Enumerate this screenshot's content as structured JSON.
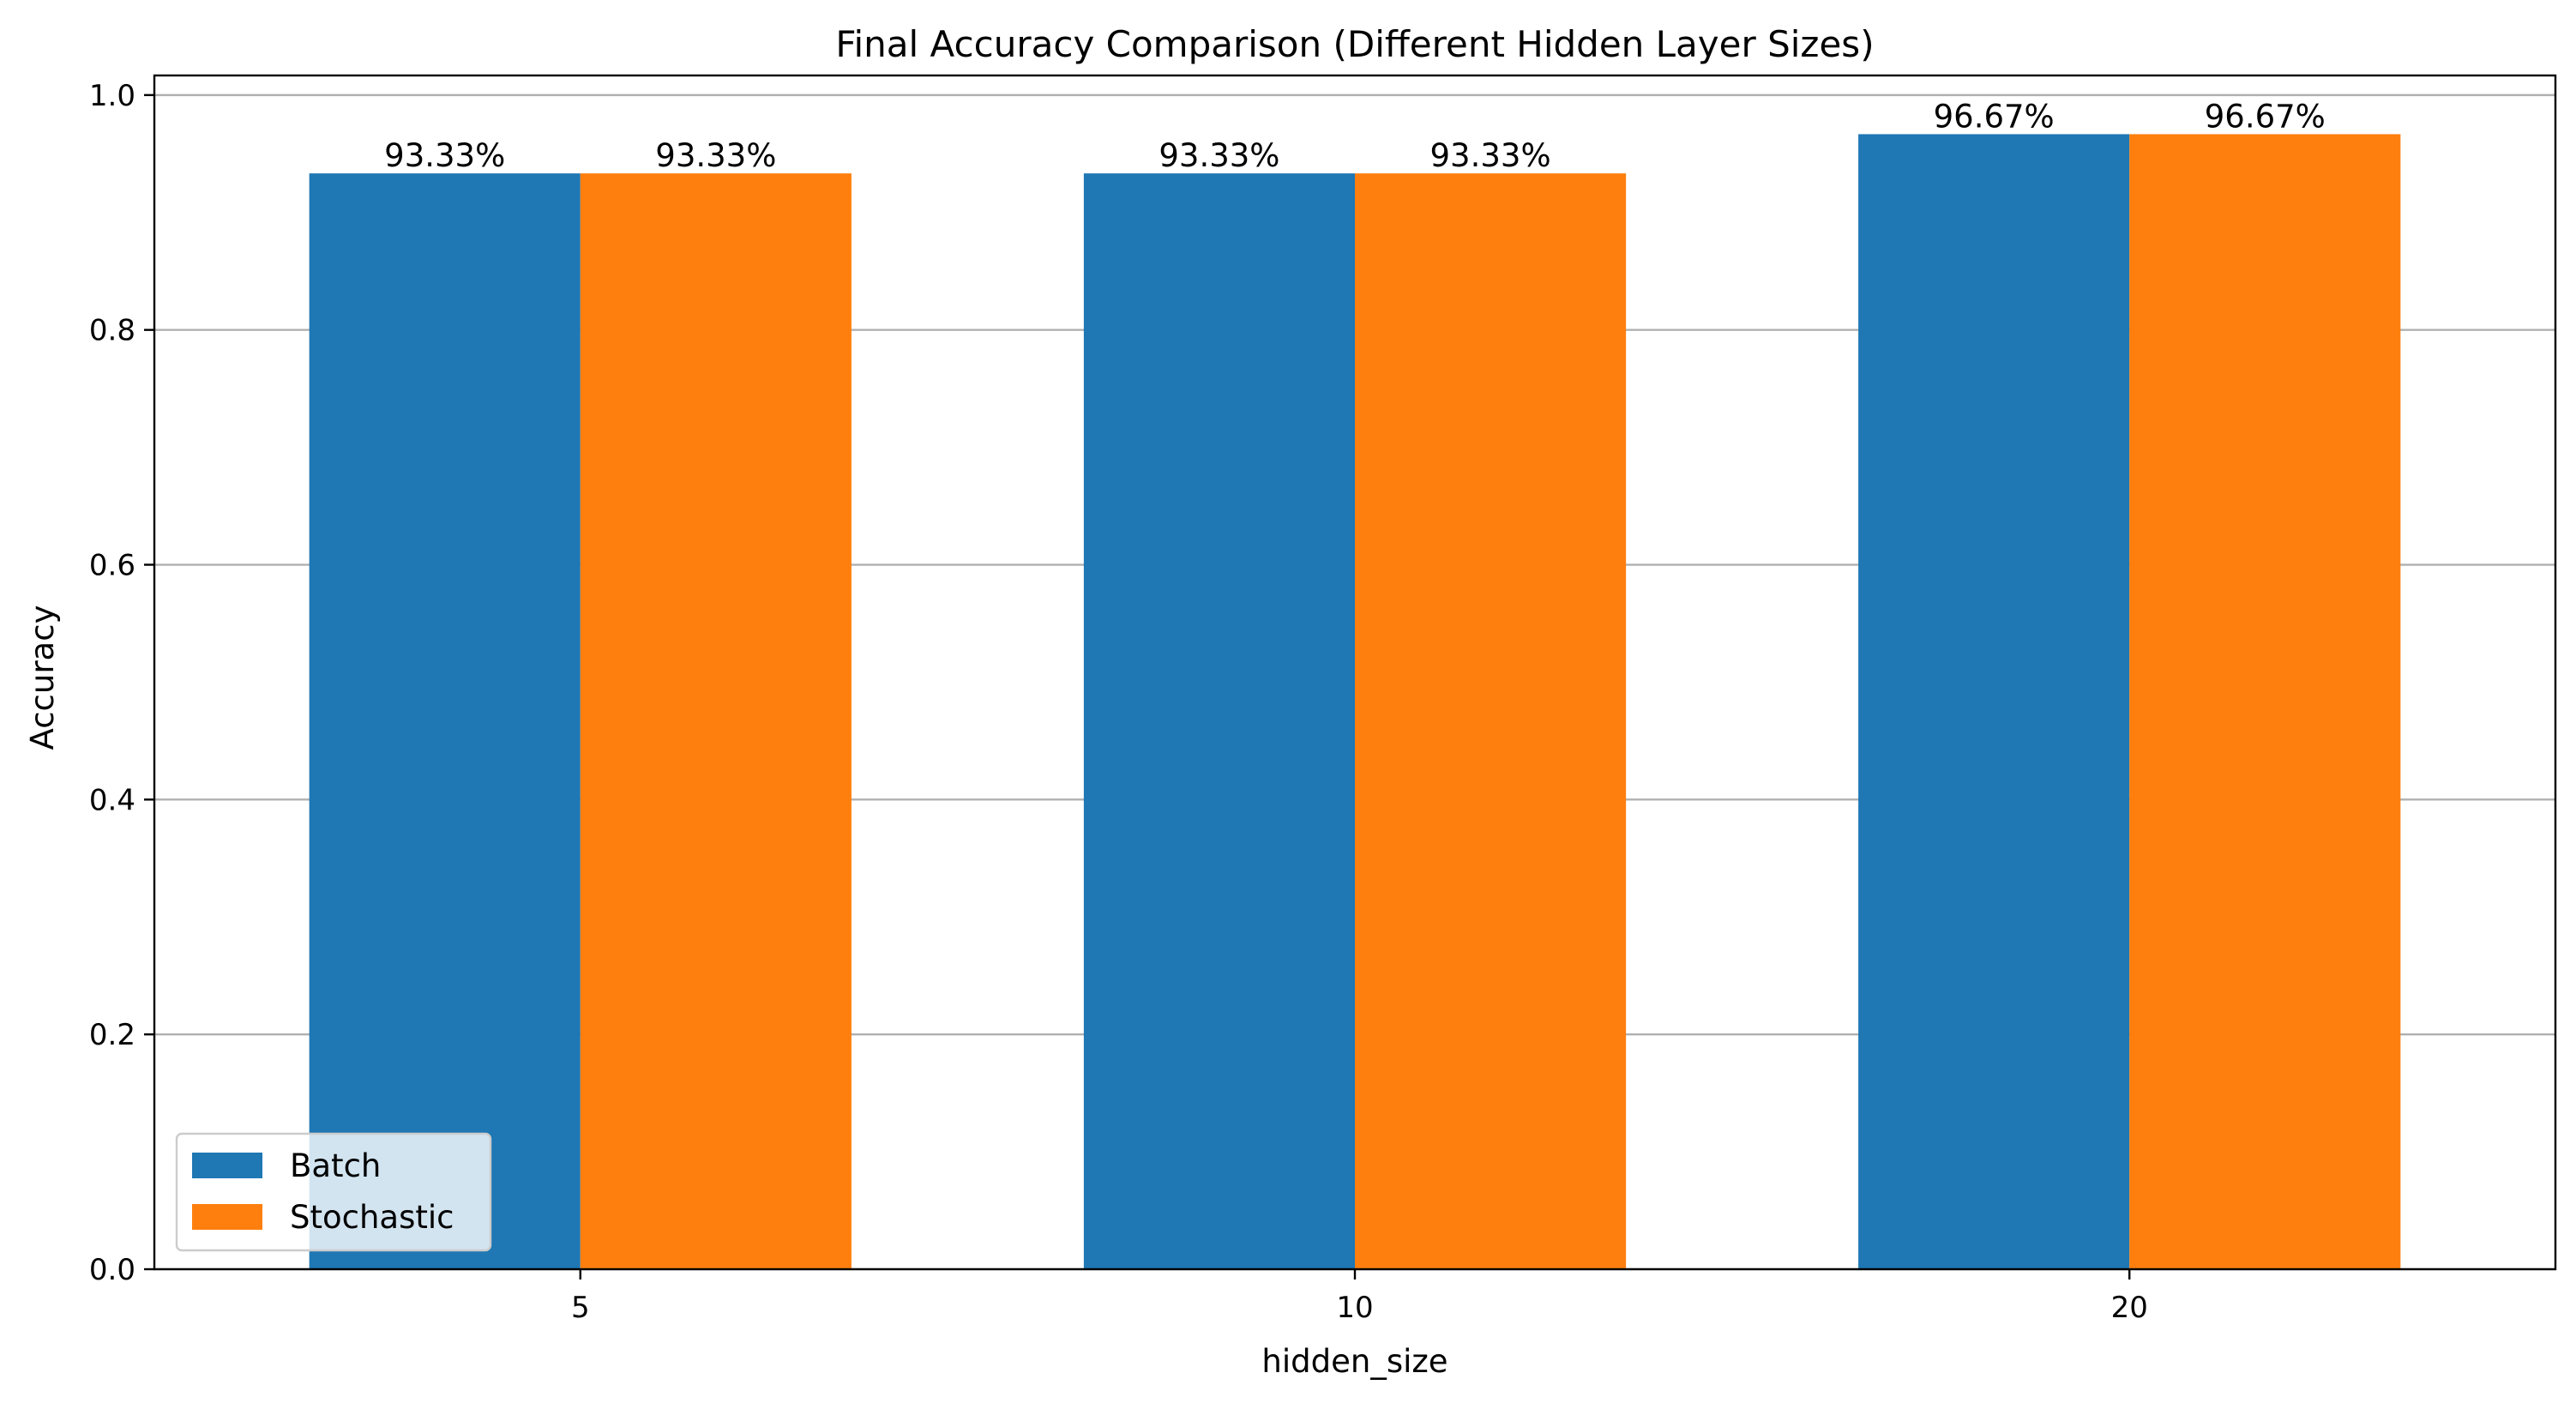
{
  "chart_data": {
    "type": "bar",
    "title": "Final Accuracy Comparison (Different Hidden Layer Sizes)",
    "xlabel": "hidden_size",
    "ylabel": "Accuracy",
    "categories": [
      "5",
      "10",
      "20"
    ],
    "series": [
      {
        "name": "Batch",
        "color": "#1f77b4",
        "values": [
          0.9333,
          0.9333,
          0.9667
        ],
        "labels": [
          "93.33%",
          "93.33%",
          "96.67%"
        ]
      },
      {
        "name": "Stochastic",
        "color": "#ff7f0e",
        "values": [
          0.9333,
          0.9333,
          0.9667
        ],
        "labels": [
          "93.33%",
          "93.33%",
          "96.67%"
        ]
      }
    ],
    "ylim": [
      0,
      1.0167
    ],
    "yticks": [
      0.0,
      0.2,
      0.4,
      0.6,
      0.8,
      1.0
    ],
    "ytick_labels": [
      "0.0",
      "0.2",
      "0.4",
      "0.6",
      "0.8",
      "1.0"
    ],
    "grid": "y-axis",
    "legend_position": "lower-left"
  }
}
